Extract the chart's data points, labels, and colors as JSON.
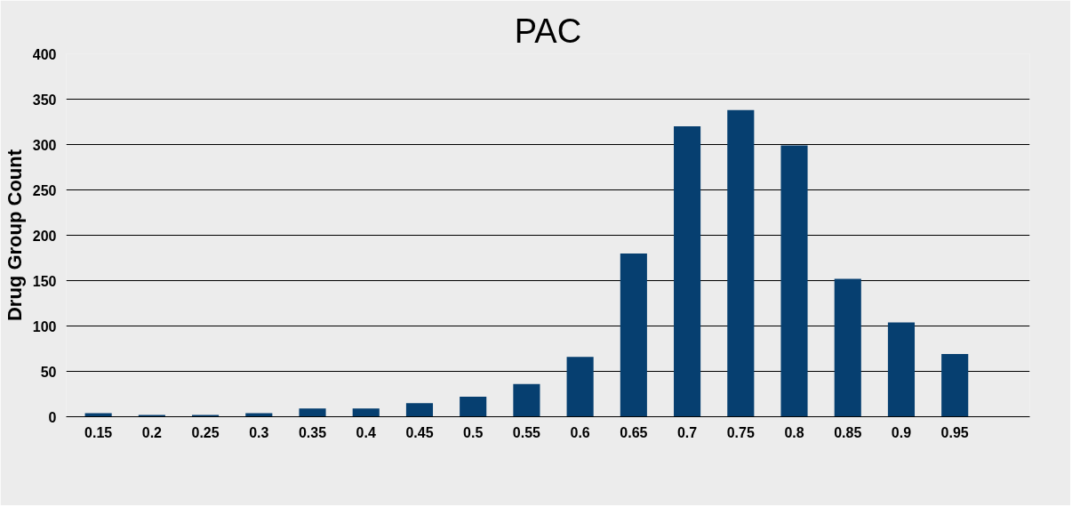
{
  "chart_data": {
    "type": "bar",
    "title": "PAC",
    "ylabel": "Drug Group Count",
    "categories": [
      "0.15",
      "0.2",
      "0.25",
      "0.3",
      "0.35",
      "0.4",
      "0.45",
      "0.5",
      "0.55",
      "0.6",
      "0.65",
      "0.7",
      "0.75",
      "0.8",
      "0.85",
      "0.9",
      "0.95"
    ],
    "values": [
      4,
      2,
      2,
      4,
      9,
      9,
      15,
      22,
      36,
      66,
      180,
      320,
      338,
      299,
      152,
      104,
      69
    ],
    "color": "#063f70",
    "ylim": [
      0,
      400
    ],
    "yticks": [
      0,
      50,
      100,
      150,
      200,
      250,
      300,
      350,
      400
    ],
    "grid": "y"
  }
}
